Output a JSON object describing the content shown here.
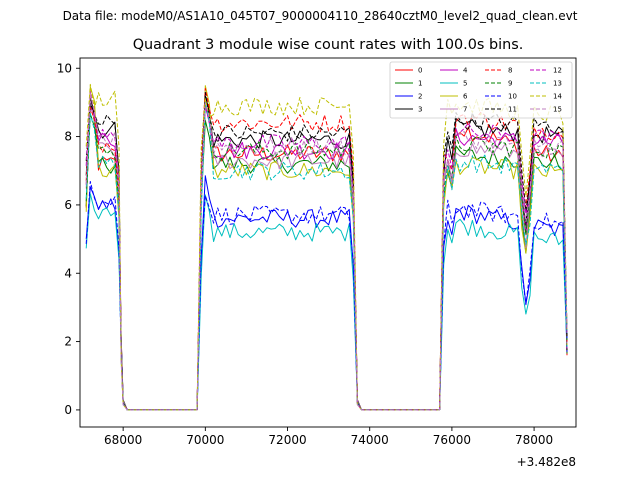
{
  "suptitle": "Data file: modeM0/AS1A10_045T07_9000004110_28640cztM0_level2_quad_clean.evt",
  "chart_data": {
    "type": "line",
    "title": "Quadrant 3 module wise count rates with 100.0s bins.",
    "xlabel": "",
    "ylabel": "",
    "x_offset_label": "+3.482e8",
    "xlim": [
      66950,
      79020
    ],
    "ylim": [
      -0.5,
      10.3
    ],
    "x_ticks": [
      68000,
      70000,
      72000,
      74000,
      76000,
      78000
    ],
    "x_tick_labels": [
      "68000",
      "70000",
      "72000",
      "74000",
      "76000",
      "78000"
    ],
    "y_ticks": [
      0,
      2,
      4,
      6,
      8,
      10
    ],
    "y_tick_labels": [
      "0",
      "2",
      "4",
      "6",
      "8",
      "10"
    ],
    "grid": false,
    "legend_position": "top-right",
    "x_step": 100,
    "segments": [
      {
        "start": 67100,
        "end": 67900
      },
      {
        "start": 69900,
        "end": 73600
      },
      {
        "start": 75800,
        "end": 78800
      }
    ],
    "series": [
      {
        "name": "0",
        "color": "#ff0000",
        "dash": "solid",
        "levels": [
          7.2,
          7.5,
          8.4,
          7.3
        ],
        "peaks": [
          9.0,
          9.0,
          7.0
        ]
      },
      {
        "name": "1",
        "color": "#008000",
        "dash": "solid",
        "levels": [
          7.1,
          7.2,
          7.5,
          7.2
        ],
        "peaks": [
          9.0,
          8.6,
          7.0
        ]
      },
      {
        "name": "2",
        "color": "#0000ff",
        "dash": "solid",
        "levels": [
          6.0,
          5.6,
          5.9,
          5.2
        ],
        "peaks": [
          6.6,
          6.8,
          5.6
        ]
      },
      {
        "name": "3",
        "color": "#000000",
        "dash": "solid",
        "levels": [
          8.2,
          7.9,
          8.3,
          8.0
        ],
        "peaks": [
          9.2,
          9.2,
          7.8
        ]
      },
      {
        "name": "4",
        "color": "#bf00bf",
        "dash": "solid",
        "levels": [
          7.9,
          7.6,
          8.0,
          7.8
        ],
        "peaks": [
          9.0,
          9.0,
          7.2
        ]
      },
      {
        "name": "5",
        "color": "#00bfbf",
        "dash": "solid",
        "levels": [
          5.8,
          5.2,
          5.5,
          4.9
        ],
        "peaks": [
          6.2,
          6.4,
          5.4
        ]
      },
      {
        "name": "6",
        "color": "#bfbf00",
        "dash": "solid",
        "levels": [
          7.0,
          7.0,
          7.2,
          6.9
        ],
        "peaks": [
          9.6,
          9.4,
          7.0
        ]
      },
      {
        "name": "7",
        "color": "#bf7fbf",
        "dash": "solid",
        "levels": [
          7.6,
          7.3,
          7.7,
          7.4
        ],
        "peaks": [
          9.0,
          9.0,
          7.2
        ]
      },
      {
        "name": "8",
        "color": "#ff0000",
        "dash": "dashed",
        "levels": [
          7.8,
          8.4,
          8.7,
          8.1
        ],
        "peaks": [
          9.0,
          9.4,
          7.4
        ]
      },
      {
        "name": "9",
        "color": "#008000",
        "dash": "dashed",
        "levels": [
          7.5,
          7.6,
          7.8,
          7.6
        ],
        "peaks": [
          8.8,
          9.0,
          7.2
        ]
      },
      {
        "name": "10",
        "color": "#0000ff",
        "dash": "dashed",
        "levels": [
          6.1,
          5.7,
          6.0,
          5.4
        ],
        "peaks": [
          6.8,
          6.4,
          6.0
        ]
      },
      {
        "name": "11",
        "color": "#000000",
        "dash": "dashed",
        "levels": [
          8.4,
          8.1,
          8.5,
          8.3
        ],
        "peaks": [
          9.1,
          9.2,
          8.2
        ]
      },
      {
        "name": "12",
        "color": "#bf00bf",
        "dash": "dashed",
        "levels": [
          8.2,
          7.8,
          8.2,
          7.9
        ],
        "peaks": [
          9.2,
          9.0,
          7.6
        ]
      },
      {
        "name": "13",
        "color": "#00bfbf",
        "dash": "dashed",
        "levels": [
          7.2,
          7.0,
          7.3,
          7.0
        ],
        "peaks": [
          8.8,
          8.9,
          7.0
        ]
      },
      {
        "name": "14",
        "color": "#bfbf00",
        "dash": "dashed",
        "levels": [
          9.1,
          8.9,
          9.0,
          8.6
        ],
        "peaks": [
          9.4,
          9.2,
          9.2
        ]
      },
      {
        "name": "15",
        "color": "#bf7fbf",
        "dash": "dashed",
        "levels": [
          7.9,
          7.7,
          8.0,
          7.7
        ],
        "peaks": [
          9.1,
          9.0,
          7.4
        ]
      }
    ]
  }
}
